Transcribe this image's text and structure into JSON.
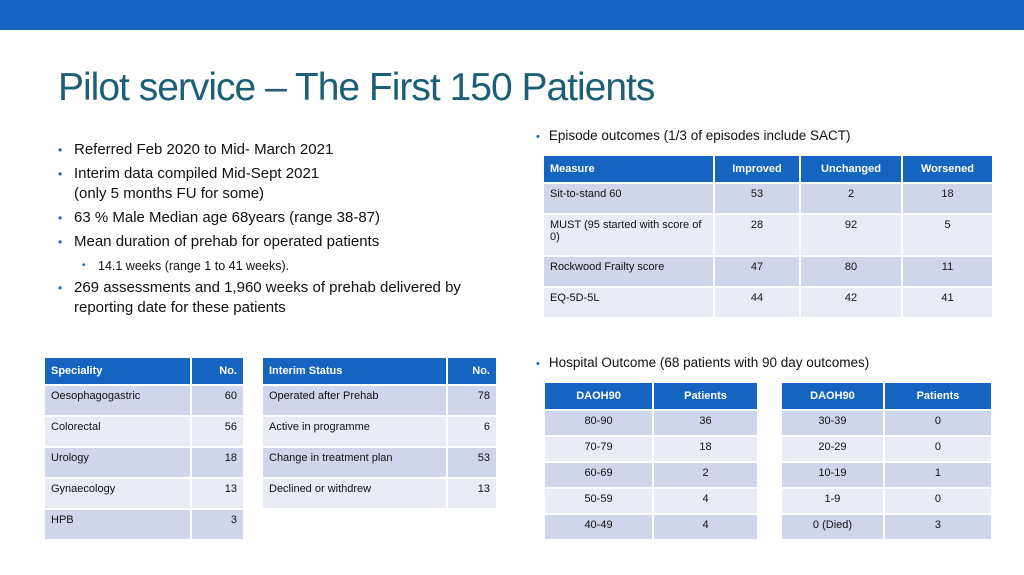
{
  "title": "Pilot service – The First 150 Patients",
  "bullets": [
    {
      "lines": [
        "Referred Feb 2020 to Mid- March 2021"
      ]
    },
    {
      "lines": [
        "Interim data compiled Mid-Sept 2021",
        "(only 5 months FU for some)"
      ]
    },
    {
      "lines": [
        "63 % Male    Median age 68years (range 38-87)"
      ]
    },
    {
      "lines": [
        "Mean duration of prehab for operated patients"
      ]
    },
    {
      "lines": [
        "14.1 weeks (range 1 to 41 weeks)."
      ],
      "sub": true
    },
    {
      "lines": [
        "269 assessments and 1,960 weeks of prehab delivered by",
        "reporting date for these patients"
      ]
    }
  ],
  "episode_note": "Episode outcomes (1/3 of episodes include SACT)",
  "hospital_note": "Hospital Outcome (68 patients with 90 day outcomes)",
  "outcomes_table": {
    "headers": [
      "Measure",
      "Improved",
      "Unchanged",
      "Worsened"
    ],
    "rows": [
      [
        "Sit-to-stand 60",
        "53",
        "2",
        "18"
      ],
      [
        "MUST (95 started with score of 0)",
        "28",
        "92",
        "5"
      ],
      [
        "Rockwood Frailty score",
        "47",
        "80",
        "11"
      ],
      [
        "EQ-5D-5L",
        "44",
        "42",
        "41"
      ]
    ]
  },
  "speciality_table": {
    "headers": [
      "Speciality",
      "No."
    ],
    "rows": [
      [
        "Oesophagogastric",
        "60"
      ],
      [
        "Colorectal",
        "56"
      ],
      [
        "Urology",
        "18"
      ],
      [
        "Gynaecology",
        "13"
      ],
      [
        "HPB",
        "3"
      ]
    ]
  },
  "interim_table": {
    "headers": [
      "Interim Status",
      "No."
    ],
    "rows": [
      [
        "Operated after Prehab",
        "78"
      ],
      [
        "Active in programme",
        "6"
      ],
      [
        "Change in treatment plan",
        "53"
      ],
      [
        "Declined or withdrew",
        "13"
      ]
    ]
  },
  "daoh_table_1": {
    "headers": [
      "DAOH90",
      "Patients"
    ],
    "rows": [
      [
        "80-90",
        "36"
      ],
      [
        "70-79",
        "18"
      ],
      [
        "60-69",
        "2"
      ],
      [
        "50-59",
        "4"
      ],
      [
        "40-49",
        "4"
      ]
    ]
  },
  "daoh_table_2": {
    "headers": [
      "DAOH90",
      "Patients"
    ],
    "rows": [
      [
        "30-39",
        "0"
      ],
      [
        "20-29",
        "0"
      ],
      [
        "10-19",
        "1"
      ],
      [
        "1-9",
        "0"
      ],
      [
        "0 (Died)",
        "3"
      ]
    ]
  },
  "colors": {
    "accent": "#1565c0",
    "title": "#1d5f76",
    "row_dark": "#cfd5ea",
    "row_light": "#e9ebf5"
  }
}
